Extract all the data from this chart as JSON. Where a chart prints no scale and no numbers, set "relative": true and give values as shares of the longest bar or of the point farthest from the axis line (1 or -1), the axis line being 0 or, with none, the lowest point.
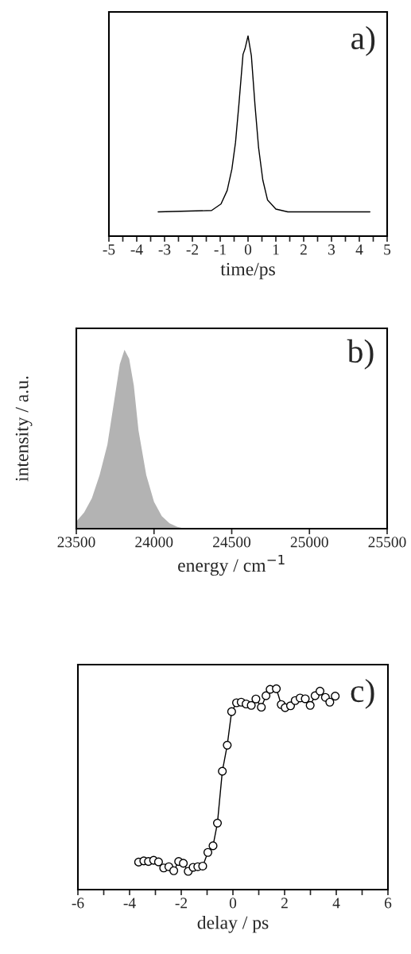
{
  "chart_data": [
    {
      "type": "line",
      "relative": true,
      "xlabel": "time/ps",
      "annotations": [
        "a)"
      ],
      "xlim": [
        -5,
        5
      ],
      "xticks": [
        -5,
        {
          "value": -4.5,
          "label": null
        },
        -4,
        {
          "value": -3.5,
          "label": null
        },
        -3,
        {
          "value": -2.5,
          "label": null
        },
        -2,
        {
          "value": -1.5,
          "label": null
        },
        -1,
        {
          "value": -0.5,
          "label": null
        },
        0,
        {
          "value": 0.5,
          "label": null
        },
        1,
        {
          "value": 1.5,
          "label": null
        },
        2,
        {
          "value": 2.5,
          "label": null
        },
        3,
        {
          "value": 3.5,
          "label": null
        },
        4,
        {
          "value": 4.5,
          "label": null
        },
        5
      ],
      "tick_labels": "x",
      "marker": "none",
      "line_style": "solid",
      "series": [
        {
          "color": "#000000",
          "x": [
            -3.23,
            -1.31,
            -0.97,
            -0.75,
            -0.58,
            -0.45,
            -0.33,
            -0.18,
            -0.11,
            0.0,
            0.12,
            0.25,
            0.38,
            0.53,
            0.7,
            1.0,
            1.43,
            4.38
          ],
          "values": [
            0.121,
            0.128,
            0.161,
            0.228,
            0.335,
            0.468,
            0.655,
            0.908,
            0.935,
            1.0,
            0.901,
            0.655,
            0.441,
            0.281,
            0.181,
            0.135,
            0.121,
            0.121
          ]
        }
      ]
    },
    {
      "type": "area",
      "relative": true,
      "xlabel": "energy / cm$^{−1}$",
      "ylabel": "intensity / a.u.",
      "annotations": [
        "b)"
      ],
      "xlim": [
        23500,
        25500
      ],
      "xticks": [
        23500,
        24000,
        24500,
        25000,
        25500
      ],
      "tick_labels": "x",
      "series": [
        {
          "color": "#b3b3b3",
          "x": [
            23500,
            23550,
            23600,
            23650,
            23700,
            23750,
            23780,
            23810,
            23840,
            23870,
            23900,
            23950,
            24000,
            24050,
            24100,
            24150,
            24200
          ],
          "values": [
            0.04,
            0.09,
            0.17,
            0.3,
            0.47,
            0.75,
            0.92,
            1.0,
            0.95,
            0.8,
            0.55,
            0.3,
            0.15,
            0.07,
            0.03,
            0.01,
            0.0
          ]
        }
      ]
    },
    {
      "type": "line",
      "relative": true,
      "xlabel": "delay / ps",
      "annotations": [
        "c)"
      ],
      "xlim": [
        -6,
        6
      ],
      "xticks": [
        -6,
        {
          "value": -5,
          "label": null
        },
        -4,
        {
          "value": -3,
          "label": null
        },
        -2,
        {
          "value": -1,
          "label": null
        },
        0,
        {
          "value": 1,
          "label": null
        },
        2,
        {
          "value": 3,
          "label": null
        },
        4,
        {
          "value": 5,
          "label": null
        },
        6
      ],
      "tick_labels": "x",
      "marker": "circle",
      "line_style": "solid",
      "series": [
        {
          "color": "#000000",
          "x": [
            -3.65,
            -3.45,
            -3.27,
            -3.07,
            -2.88,
            -2.68,
            -2.48,
            -2.29,
            -2.1,
            -1.92,
            -1.73,
            -1.54,
            -1.36,
            -1.17,
            -0.97,
            -0.77,
            -0.6,
            -0.41,
            -0.22,
            -0.05,
            0.14,
            0.32,
            0.51,
            0.71,
            0.89,
            1.1,
            1.28,
            1.44,
            1.68,
            1.87,
            2.02,
            2.23,
            2.41,
            2.6,
            2.8,
            2.99,
            3.18,
            3.37,
            3.58,
            3.75,
            3.96
          ],
          "values": [
            0.137,
            0.143,
            0.14,
            0.146,
            0.138,
            0.108,
            0.114,
            0.094,
            0.14,
            0.131,
            0.091,
            0.111,
            0.114,
            0.117,
            0.185,
            0.218,
            0.331,
            0.589,
            0.719,
            0.886,
            0.93,
            0.933,
            0.924,
            0.917,
            0.949,
            0.908,
            0.965,
            0.997,
            1.0,
            0.921,
            0.906,
            0.915,
            0.941,
            0.954,
            0.95,
            0.917,
            0.965,
            0.988,
            0.957,
            0.933,
            0.963
          ]
        }
      ]
    }
  ]
}
